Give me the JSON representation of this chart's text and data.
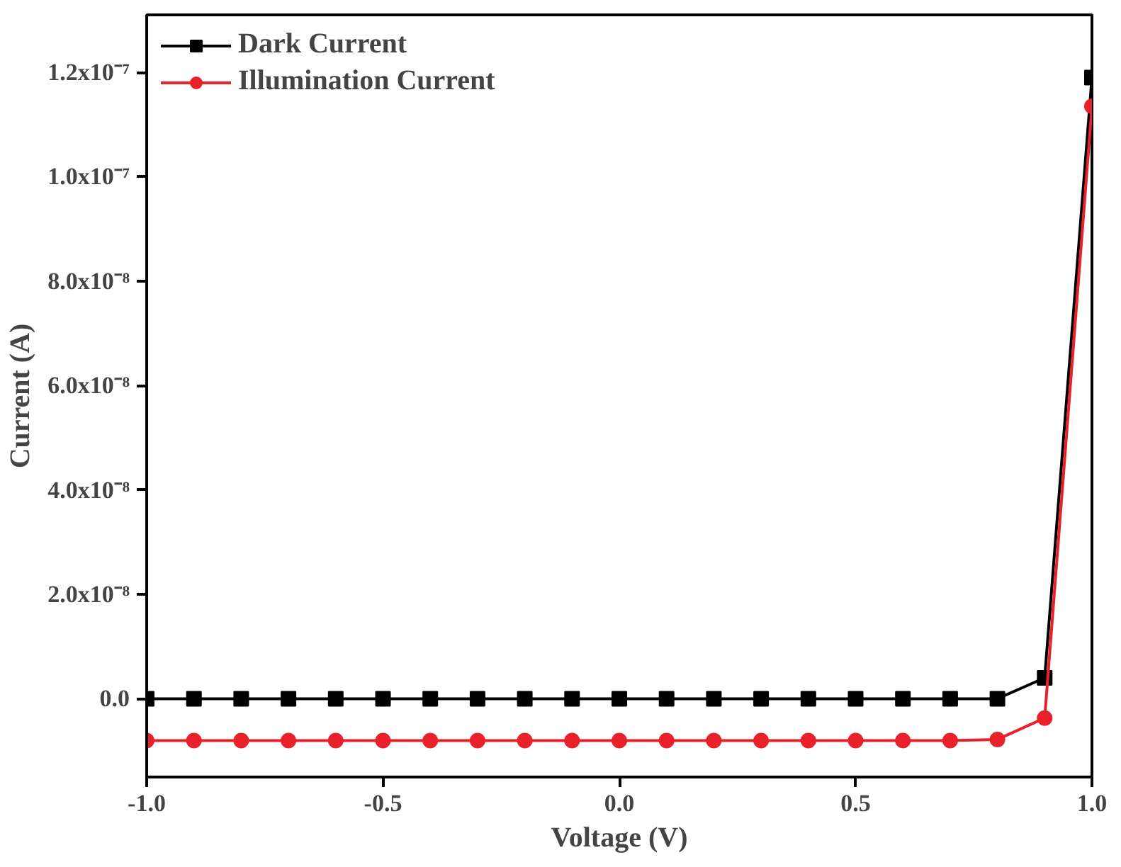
{
  "chart_data": {
    "type": "line",
    "xlabel": "Voltage (V)",
    "ylabel": "Current (A)",
    "x": [
      -1.0,
      -0.9,
      -0.8,
      -0.7,
      -0.6,
      -0.5,
      -0.4,
      -0.3,
      -0.2,
      -0.1,
      0.0,
      0.1,
      0.2,
      0.3,
      0.4,
      0.5,
      0.6,
      0.7,
      0.8,
      0.9,
      1.0
    ],
    "series": [
      {
        "name": "Dark Current",
        "color": "#000000",
        "marker": "square",
        "values": [
          0,
          0,
          0,
          0,
          0,
          0,
          0,
          0,
          0,
          0,
          0,
          0,
          0,
          0,
          0,
          0,
          0,
          0,
          0,
          4e-09,
          1.19e-07
        ]
      },
      {
        "name": "Illumination Current",
        "color": "#e8212a",
        "marker": "circle",
        "values": [
          -8e-09,
          -8e-09,
          -8e-09,
          -8e-09,
          -8e-09,
          -8e-09,
          -8e-09,
          -8e-09,
          -8e-09,
          -8e-09,
          -8e-09,
          -8e-09,
          -8e-09,
          -8e-09,
          -8e-09,
          -8e-09,
          -8e-09,
          -8e-09,
          -7.8e-09,
          -3.7e-09,
          1.135e-07
        ]
      }
    ],
    "xlim": [
      -1.0,
      1.0
    ],
    "ylim": [
      -1.5e-08,
      1.31e-07
    ],
    "xticks": [
      {
        "value": -1.0,
        "label": "-1.0"
      },
      {
        "value": -0.5,
        "label": "-0.5"
      },
      {
        "value": 0.0,
        "label": "0.0"
      },
      {
        "value": 0.5,
        "label": "0.5"
      },
      {
        "value": 1.0,
        "label": "1.0"
      }
    ],
    "yticks": [
      {
        "value": 0,
        "label": "0.0"
      },
      {
        "value": 2e-08,
        "label": "2.0x10⁻⁸"
      },
      {
        "value": 4e-08,
        "label": "4.0x10⁻⁸"
      },
      {
        "value": 6e-08,
        "label": "6.0x10⁻⁸"
      },
      {
        "value": 8e-08,
        "label": "8.0x10⁻⁸"
      },
      {
        "value": 1e-07,
        "label": "1.0x10⁻⁷"
      },
      {
        "value": 1.2e-07,
        "label": "1.2x10⁻⁷"
      }
    ],
    "grid": false,
    "legend": "top left",
    "line_style": "solid"
  }
}
